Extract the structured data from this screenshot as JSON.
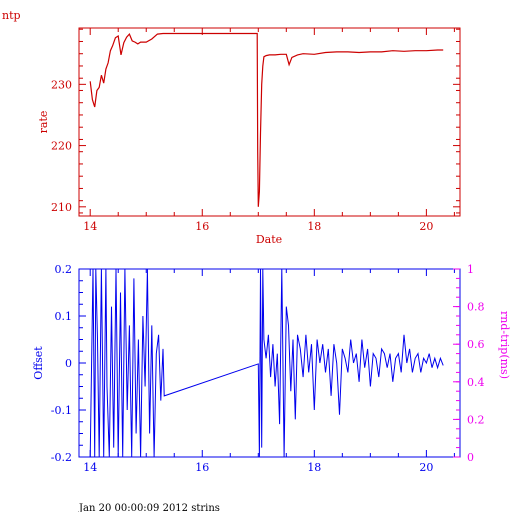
{
  "page": {
    "corner_label": "ntp",
    "footer": "Jan 20 00:00:09 2012 strins"
  },
  "colors": {
    "rate": "#cc0000",
    "offset": "#0000ee",
    "roundtrip": "#ee00ee"
  },
  "chart_data": [
    {
      "type": "line",
      "title": "",
      "xlabel": "Date",
      "ylabel": "rate",
      "xlim": [
        13.8,
        20.6
      ],
      "ylim": [
        208.5,
        239.2
      ],
      "xticks": [
        14,
        16,
        18,
        20
      ],
      "yticks": [
        210,
        220,
        230
      ],
      "series": [
        {
          "x": [
            14.0,
            14.04,
            14.08,
            14.12,
            14.16,
            14.2,
            14.24,
            14.28,
            14.32,
            14.36,
            14.4,
            14.45,
            14.5,
            14.55,
            14.6,
            14.65,
            14.7,
            14.75,
            14.8,
            14.85,
            14.9,
            15.0,
            15.1,
            15.2,
            15.3,
            15.4,
            15.6,
            15.8,
            16.0,
            16.2,
            16.4,
            16.6,
            16.8,
            16.98,
            16.99,
            17.0,
            17.02,
            17.04,
            17.06,
            17.08,
            17.1,
            17.14,
            17.2,
            17.3,
            17.4,
            17.5,
            17.55,
            17.6,
            17.7,
            17.8,
            18.0,
            18.2,
            18.4,
            18.6,
            18.8,
            19.0,
            19.2,
            19.4,
            19.6,
            19.8,
            20.0,
            20.2,
            20.3
          ],
          "values": [
            230.5,
            227.5,
            226.3,
            229.0,
            229.5,
            231.5,
            230.2,
            232.5,
            233.5,
            235.5,
            236.3,
            237.6,
            237.9,
            234.8,
            236.8,
            237.7,
            238.2,
            237.1,
            236.9,
            236.6,
            236.9,
            236.9,
            237.4,
            238.2,
            238.3,
            238.3,
            238.3,
            238.3,
            238.3,
            238.3,
            238.3,
            238.3,
            238.3,
            238.3,
            219.0,
            210.0,
            212.5,
            222.0,
            230.0,
            233.0,
            234.5,
            234.7,
            234.8,
            234.8,
            234.9,
            234.9,
            233.2,
            234.4,
            234.8,
            235.0,
            234.9,
            235.2,
            235.3,
            235.3,
            235.2,
            235.3,
            235.3,
            235.5,
            235.4,
            235.5,
            235.5,
            235.6,
            235.6
          ]
        }
      ]
    },
    {
      "type": "line",
      "title": "",
      "xlabel": "",
      "ylabel": "Offset",
      "y2label": "rnd-trip(ms)",
      "xlim": [
        13.8,
        20.6
      ],
      "ylim": [
        -0.2,
        0.2
      ],
      "y2lim": [
        0,
        1
      ],
      "xticks": [
        14,
        16,
        18,
        20
      ],
      "yticks": [
        -0.2,
        -0.1,
        0,
        0.1,
        0.2
      ],
      "y2ticks": [
        0,
        0.2,
        0.4,
        0.6,
        0.8,
        1
      ],
      "series": [
        {
          "x": [
            14.0,
            14.05,
            14.08,
            14.1,
            14.13,
            14.16,
            14.2,
            14.24,
            14.28,
            14.3,
            14.34,
            14.38,
            14.42,
            14.46,
            14.5,
            14.54,
            14.58,
            14.62,
            14.66,
            14.7,
            14.74,
            14.78,
            14.82,
            14.86,
            14.9,
            14.94,
            14.98,
            15.02,
            15.06,
            15.1,
            15.14,
            15.18,
            15.22,
            15.26,
            15.3,
            15.32,
            17.0,
            17.02,
            17.04,
            17.06,
            17.08,
            17.1,
            17.14,
            17.18,
            17.22,
            17.26,
            17.3,
            17.34,
            17.38,
            17.42,
            17.46,
            17.5,
            17.54,
            17.58,
            17.62,
            17.66,
            17.7,
            17.75,
            17.8,
            17.85,
            17.9,
            17.95,
            18.0,
            18.05,
            18.1,
            18.15,
            18.2,
            18.25,
            18.3,
            18.35,
            18.4,
            18.45,
            18.5,
            18.55,
            18.6,
            18.65,
            18.7,
            18.75,
            18.8,
            18.85,
            18.9,
            18.95,
            19.0,
            19.05,
            19.1,
            19.15,
            19.2,
            19.25,
            19.3,
            19.35,
            19.4,
            19.45,
            19.5,
            19.55,
            19.6,
            19.65,
            19.7,
            19.75,
            19.8,
            19.85,
            19.9,
            19.95,
            20.0,
            20.05,
            20.1,
            20.15,
            20.2,
            20.25,
            20.3
          ],
          "values": [
            -0.2,
            0.2,
            -0.2,
            0.2,
            0.05,
            -0.2,
            0.2,
            -0.2,
            0.2,
            -0.05,
            -0.2,
            0.12,
            -0.18,
            0.2,
            -0.2,
            0.15,
            -0.2,
            0.2,
            -0.1,
            0.08,
            -0.2,
            0.18,
            -0.15,
            0.05,
            -0.2,
            0.1,
            -0.05,
            0.2,
            -0.15,
            0.08,
            -0.2,
            0.02,
            0.06,
            -0.08,
            0.03,
            -0.07,
            -0.002,
            -0.2,
            0.2,
            -0.18,
            0.2,
            0.05,
            0.01,
            0.06,
            -0.03,
            0.04,
            -0.05,
            0.02,
            -0.13,
            0.2,
            -0.2,
            0.12,
            0.08,
            -0.06,
            0.05,
            -0.12,
            0.06,
            0.03,
            -0.03,
            0.06,
            -0.02,
            0.04,
            -0.1,
            0.05,
            0.0,
            0.04,
            -0.02,
            0.03,
            -0.07,
            0.04,
            0.0,
            -0.11,
            0.03,
            0.01,
            -0.02,
            0.05,
            0.0,
            0.02,
            -0.04,
            0.05,
            -0.01,
            0.03,
            -0.05,
            0.02,
            0.01,
            -0.03,
            0.03,
            0.02,
            -0.01,
            0.02,
            -0.04,
            0.01,
            0.02,
            -0.02,
            0.06,
            0.0,
            0.03,
            -0.02,
            0.01,
            0.02,
            -0.02,
            0.01,
            0.0,
            0.02,
            -0.01,
            0.01,
            -0.01,
            0.01,
            -0.005
          ]
        }
      ]
    }
  ]
}
